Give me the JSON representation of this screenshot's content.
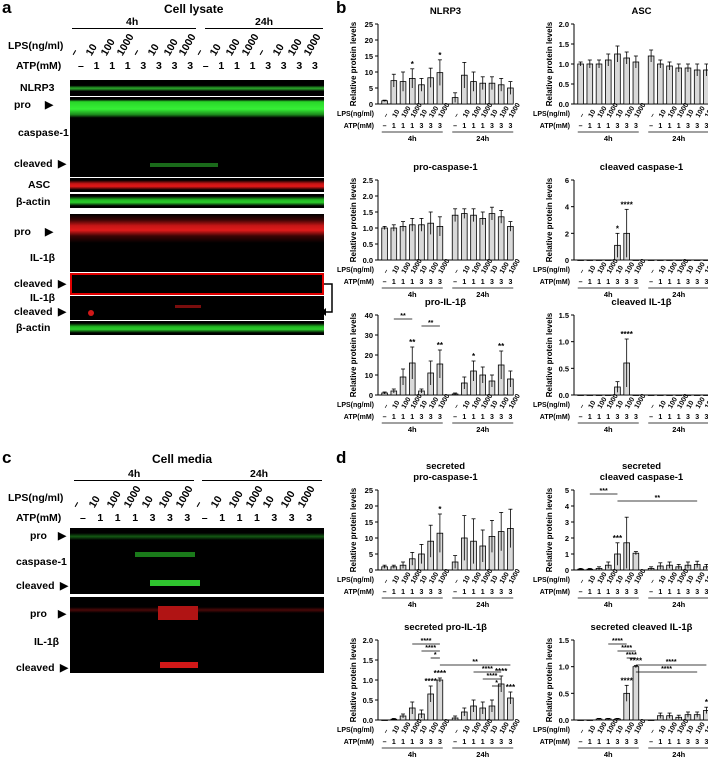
{
  "panels": {
    "a": "a",
    "b": "b",
    "c": "c",
    "d": "d"
  },
  "a": {
    "title": "Cell lysate",
    "t4h": "4h",
    "t24h": "24h",
    "lps_label": "LPS(ng/ml)",
    "atp_label": "ATP(mM)",
    "lps_values": [
      "–",
      "10",
      "100",
      "1000",
      "–",
      "10",
      "100",
      "1000",
      "–",
      "10",
      "100",
      "1000",
      "–",
      "10",
      "100",
      "1000"
    ],
    "atp_values": [
      "–",
      "1",
      "1",
      "1",
      "3",
      "3",
      "3",
      "3",
      "–",
      "1",
      "1",
      "1",
      "3",
      "3",
      "3",
      "3"
    ],
    "labels": {
      "nlrp3": "NLRP3",
      "pro": "pro",
      "caspase1": "caspase-1",
      "cleaved": "cleaved",
      "asc": "ASC",
      "actin1": "β-actin",
      "pro2": "pro",
      "il1b": "IL-1β",
      "cleaved2": "cleaved",
      "il1b2": "IL-1β",
      "cleaved3": "cleaved",
      "actin2": "β-actin"
    }
  },
  "c": {
    "title": "Cell media",
    "t4h": "4h",
    "t24h": "24h",
    "lps_label": "LPS(ng/ml)",
    "atp_label": "ATP(mM)",
    "lps_values": [
      "–",
      "10",
      "100",
      "1000",
      "10",
      "100",
      "1000",
      "–",
      "10",
      "100",
      "1000",
      "10",
      "100",
      "1000"
    ],
    "atp_values": [
      "–",
      "1",
      "1",
      "1",
      "3",
      "3",
      "3",
      "–",
      "1",
      "1",
      "1",
      "3",
      "3",
      "3"
    ],
    "labels": {
      "pro": "pro",
      "caspase1": "caspase-1",
      "cleaved": "cleaved",
      "pro2": "pro",
      "il1b": "IL-1β",
      "cleaved2": "cleaved"
    }
  },
  "axis": {
    "ylabel": "Relative protein levels",
    "lps": "LPS(ng/ml)",
    "atp": "ATP(mM)",
    "g4": "4h",
    "g24": "24h",
    "lps_ticks": [
      "–",
      "10",
      "100",
      "1000",
      "10",
      "100",
      "1000",
      "–",
      "10",
      "100",
      "1000",
      "10",
      "100",
      "1000"
    ],
    "atp_ticks": [
      "–",
      "1",
      "1",
      "1",
      "3",
      "3",
      "3",
      "–",
      "1",
      "1",
      "1",
      "3",
      "3",
      "3"
    ]
  },
  "chart_data": [
    {
      "type": "bar",
      "title": "NLRP3",
      "ylim": [
        0,
        25
      ],
      "yticks": [
        "0",
        "5",
        "10",
        "15",
        "20",
        "25"
      ],
      "values": [
        1,
        7.3,
        7,
        8,
        6,
        8.2,
        9.8,
        2,
        9,
        7,
        6.5,
        6.5,
        6,
        5
      ],
      "errors": [
        0.2,
        2,
        3,
        3,
        2,
        3,
        4,
        1.5,
        4,
        3,
        2,
        2,
        2,
        2
      ],
      "stars": [
        {
          "i": 3,
          "s": "*"
        },
        {
          "i": 6,
          "s": "*"
        }
      ]
    },
    {
      "type": "bar",
      "title": "ASC",
      "ylim": [
        0,
        2
      ],
      "yticks": [
        "0.0",
        "0.5",
        "1.0",
        "1.5",
        "2.0"
      ],
      "values": [
        1,
        1.0,
        1.0,
        1.1,
        1.25,
        1.15,
        1.05,
        1.2,
        1.0,
        0.95,
        0.9,
        0.9,
        0.85,
        0.85
      ],
      "errors": [
        0.05,
        0.1,
        0.1,
        0.15,
        0.2,
        0.15,
        0.15,
        0.15,
        0.1,
        0.1,
        0.1,
        0.1,
        0.15,
        0.15
      ],
      "stars": []
    },
    {
      "type": "bar",
      "title": "pro-caspase-1",
      "ylim": [
        0,
        2.5
      ],
      "yticks": [
        "0.0",
        "0.5",
        "1.0",
        "1.5",
        "2.0",
        "2.5"
      ],
      "values": [
        1,
        1.0,
        1.05,
        1.1,
        1.1,
        1.15,
        1.05,
        1.4,
        1.45,
        1.4,
        1.3,
        1.45,
        1.35,
        1.05
      ],
      "errors": [
        0.05,
        0.1,
        0.15,
        0.2,
        0.2,
        0.35,
        0.3,
        0.2,
        0.15,
        0.2,
        0.2,
        0.2,
        0.2,
        0.15
      ],
      "stars": []
    },
    {
      "type": "bar",
      "title": "cleaved caspase-1",
      "ylim": [
        0,
        6
      ],
      "yticks": [
        "0",
        "2",
        "4",
        "6"
      ],
      "values": [
        0,
        0,
        0,
        0,
        1.1,
        2.0,
        0,
        0,
        0,
        0,
        0,
        0,
        0,
        0
      ],
      "errors": [
        0,
        0,
        0,
        0,
        0.9,
        1.8,
        0,
        0,
        0,
        0,
        0,
        0,
        0,
        0
      ],
      "stars": [
        {
          "i": 4,
          "s": "*"
        },
        {
          "i": 5,
          "s": "****"
        }
      ]
    },
    {
      "type": "bar",
      "title": "pro-IL-1β",
      "ylim": [
        0,
        40
      ],
      "yticks": [
        "0",
        "10",
        "20",
        "30",
        "40"
      ],
      "values": [
        1,
        2,
        9,
        16,
        2,
        11,
        15.5,
        0.5,
        6,
        12,
        10,
        7,
        15,
        8
      ],
      "errors": [
        0.5,
        1,
        4,
        8,
        1,
        6,
        7,
        0.5,
        3,
        5,
        4,
        3,
        7,
        4
      ],
      "stars": [
        {
          "i": 3,
          "s": "**"
        },
        {
          "i": 6,
          "s": "**"
        },
        {
          "i": 9,
          "s": "*"
        },
        {
          "i": 12,
          "s": "**"
        }
      ],
      "brackets": [
        {
          "from": 1,
          "to": 3,
          "s": "**"
        },
        {
          "from": 4,
          "to": 6,
          "s": "**"
        }
      ]
    },
    {
      "type": "bar",
      "title": "cleaved IL-1β",
      "ylim": [
        0,
        1.5
      ],
      "yticks": [
        "0.0",
        "0.5",
        "1.0",
        "1.5"
      ],
      "values": [
        0,
        0,
        0,
        0,
        0.15,
        0.6,
        0,
        0,
        0,
        0,
        0,
        0,
        0,
        0
      ],
      "errors": [
        0,
        0,
        0,
        0,
        0.1,
        0.45,
        0,
        0,
        0,
        0,
        0,
        0,
        0,
        0
      ],
      "stars": [
        {
          "i": 5,
          "s": "****"
        }
      ]
    },
    {
      "type": "bar",
      "title": "secreted\npro-caspase-1",
      "ylim": [
        0,
        25
      ],
      "yticks": [
        "0",
        "5",
        "10",
        "15",
        "20",
        "25"
      ],
      "values": [
        1,
        1,
        1.5,
        3.5,
        5,
        9,
        11.5,
        2.5,
        10,
        9,
        7.5,
        10.5,
        12,
        13
      ],
      "errors": [
        0.5,
        0.5,
        1,
        2,
        3,
        5,
        6,
        2,
        7,
        7,
        5,
        5,
        6,
        6
      ],
      "stars": [
        {
          "i": 6,
          "s": "*"
        }
      ]
    },
    {
      "type": "bar",
      "title": "secreted\ncleaved caspase-1",
      "ylim": [
        0,
        5
      ],
      "yticks": [
        "0",
        "1",
        "2",
        "3",
        "4",
        "5"
      ],
      "values": [
        0.05,
        0.05,
        0.1,
        0.3,
        1.0,
        1.7,
        1.05,
        0.1,
        0.25,
        0.3,
        0.2,
        0.3,
        0.35,
        0.2
      ],
      "errors": [
        0.05,
        0.05,
        0.1,
        0.2,
        0.7,
        1.6,
        0.1,
        0.1,
        0.2,
        0.2,
        0.15,
        0.2,
        0.2,
        0.15
      ],
      "stars": [
        {
          "i": 4,
          "s": "***"
        }
      ],
      "brackets": [
        {
          "from": 1,
          "to": 4,
          "s": "***"
        },
        {
          "from": 4,
          "to": 12,
          "s": "**"
        }
      ]
    },
    {
      "type": "bar",
      "title": "secreted pro-IL-1β",
      "ylim": [
        0,
        2
      ],
      "yticks": [
        "0.0",
        "0.5",
        "1.0",
        "1.5",
        "2.0"
      ],
      "values": [
        0,
        0.02,
        0.1,
        0.3,
        0.15,
        0.65,
        1.0,
        0.05,
        0.2,
        0.35,
        0.3,
        0.35,
        0.9,
        0.55
      ],
      "errors": [
        0,
        0.02,
        0.05,
        0.15,
        0.1,
        0.2,
        0.05,
        0.05,
        0.1,
        0.15,
        0.15,
        0.15,
        0.2,
        0.15
      ],
      "stars": [
        {
          "i": 5,
          "s": "****"
        },
        {
          "i": 6,
          "s": "****"
        },
        {
          "i": 12,
          "s": "****"
        },
        {
          "i": 13,
          "s": "***"
        }
      ],
      "brackets": [
        {
          "from": 3,
          "to": 6,
          "s": "****"
        },
        {
          "from": 4,
          "to": 6,
          "s": "****"
        },
        {
          "from": 5,
          "to": 6,
          "s": "*"
        },
        {
          "from": 6,
          "to": 13,
          "s": "**"
        },
        {
          "from": 9,
          "to": 12,
          "s": "****"
        },
        {
          "from": 10,
          "to": 12,
          "s": "****"
        },
        {
          "from": 11,
          "to": 12,
          "s": "*"
        }
      ]
    },
    {
      "type": "bar",
      "title": "secreted cleaved IL-1β",
      "ylim": [
        0,
        1.5
      ],
      "yticks": [
        "0.0",
        "0.5",
        "1.0",
        "1.5"
      ],
      "values": [
        0,
        0,
        0.02,
        0.02,
        0.02,
        0.5,
        1.0,
        0,
        0.08,
        0.08,
        0.05,
        0.1,
        0.1,
        0.18
      ],
      "errors": [
        0,
        0,
        0.01,
        0.01,
        0.01,
        0.15,
        0.02,
        0,
        0.05,
        0.05,
        0.04,
        0.05,
        0.05,
        0.06
      ],
      "stars": [
        {
          "i": 5,
          "s": "****"
        },
        {
          "i": 6,
          "s": "****"
        },
        {
          "i": 13,
          "s": "*"
        }
      ],
      "brackets": [
        {
          "from": 3,
          "to": 5,
          "s": "****"
        },
        {
          "from": 4,
          "to": 6,
          "s": "****"
        },
        {
          "from": 5,
          "to": 6,
          "s": "****"
        },
        {
          "from": 6,
          "to": 13,
          "s": "****"
        },
        {
          "from": 6,
          "to": 12,
          "s": "****"
        }
      ]
    }
  ]
}
